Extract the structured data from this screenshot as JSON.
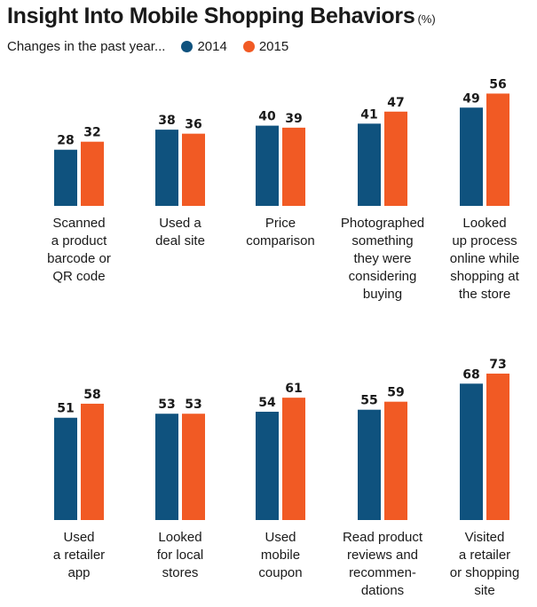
{
  "header": {
    "title": "Insight Into Mobile Shopping Behaviors",
    "unit": "(%)",
    "subtitle": "Changes in the past year..."
  },
  "colors": {
    "s2014": "#0f527e",
    "s2015": "#f15a24"
  },
  "chart_data": {
    "type": "bar",
    "title": "Insight Into Mobile Shopping Behaviors",
    "unit": "(%)",
    "legend_position": "top-left",
    "grid": false,
    "ylim": [
      0,
      100
    ],
    "series_names": [
      "2014",
      "2015"
    ],
    "panels": [
      {
        "categories": [
          [
            "Scanned",
            "a product",
            "barcode or",
            "QR code"
          ],
          [
            "Used a",
            "deal site"
          ],
          [
            "Price",
            "comparison"
          ],
          [
            "Photographed",
            "something",
            "they were",
            "considering",
            "buying"
          ],
          [
            "Looked",
            "up process",
            "online while",
            "shopping at",
            "the store"
          ]
        ],
        "series": [
          {
            "name": "2014",
            "values": [
              28,
              38,
              40,
              41,
              49
            ]
          },
          {
            "name": "2015",
            "values": [
              32,
              36,
              39,
              47,
              56
            ]
          }
        ]
      },
      {
        "categories": [
          [
            "Used",
            "a retailer",
            "app"
          ],
          [
            "Looked",
            "for local",
            "stores"
          ],
          [
            "Used",
            "mobile",
            "coupon"
          ],
          [
            "Read product",
            "reviews and",
            "recommen-",
            "dations"
          ],
          [
            "Visited",
            "a retailer",
            "or shopping",
            "site"
          ]
        ],
        "series": [
          {
            "name": "2014",
            "values": [
              51,
              53,
              54,
              55,
              68
            ]
          },
          {
            "name": "2015",
            "values": [
              58,
              53,
              61,
              59,
              73
            ]
          }
        ]
      }
    ]
  }
}
